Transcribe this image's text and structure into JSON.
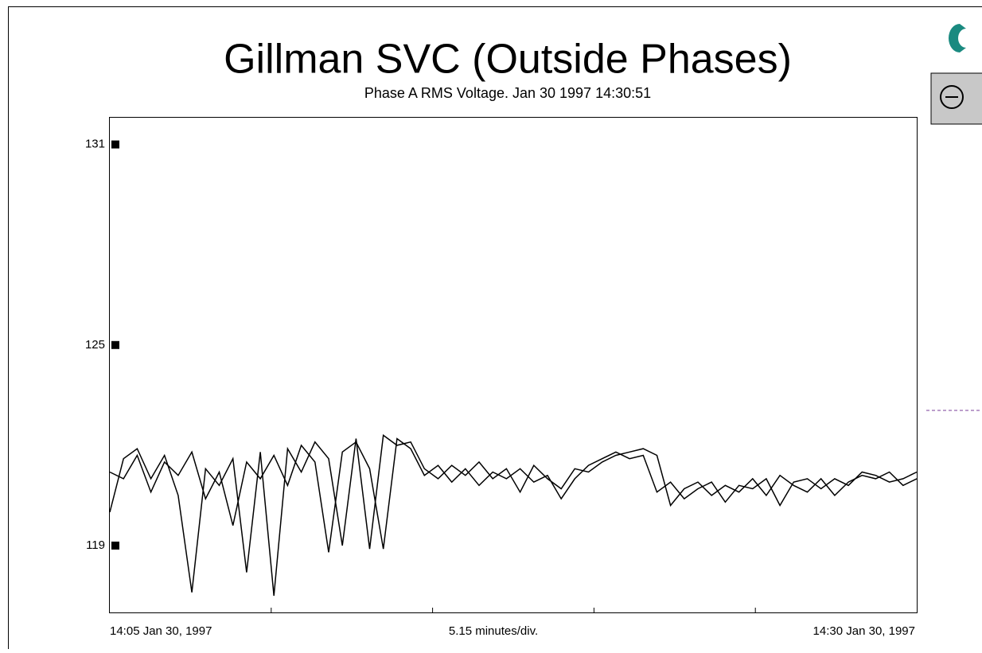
{
  "chart_data": {
    "type": "line",
    "title": "Gillman SVC (Outside Phases)",
    "subtitle": "Phase A RMS Voltage. Jan 30 1997 14:30:51",
    "x_labels": [
      "14:05 Jan 30, 1997",
      "5.15 minutes/div.",
      "14:30 Jan 30, 1997"
    ],
    "ylim": [
      117,
      131.8
    ],
    "yticks": [
      119,
      125,
      131
    ],
    "series": [
      {
        "color": "#000000",
        "values": [
          120.0,
          121.6,
          121.9,
          121.0,
          121.7,
          120.5,
          117.6,
          121.3,
          120.8,
          121.6,
          118.2,
          121.8,
          117.5,
          121.9,
          121.2,
          122.1,
          121.6,
          119.0,
          122.2,
          118.9,
          122.3,
          122.0,
          122.1,
          121.3,
          121.0,
          121.4,
          121.1,
          121.5,
          121.0,
          121.3,
          120.6,
          121.4,
          121.0,
          120.7,
          121.3,
          121.2,
          121.5,
          121.7,
          121.8,
          121.9,
          121.7,
          120.2,
          120.7,
          120.9,
          120.5,
          120.8,
          120.6,
          121.0,
          120.5,
          121.1,
          120.8,
          120.6,
          121.0,
          120.5,
          120.9,
          121.1,
          121.0,
          121.2,
          120.8,
          121.0
        ]
      },
      {
        "color": "#000000",
        "values": [
          121.2,
          121.0,
          121.7,
          120.6,
          121.5,
          121.1,
          121.8,
          120.4,
          121.2,
          119.6,
          121.5,
          121.0,
          121.7,
          120.8,
          122.0,
          121.5,
          118.8,
          121.8,
          122.1,
          121.3,
          118.9,
          122.2,
          121.9,
          121.1,
          121.4,
          120.9,
          121.3,
          120.8,
          121.2,
          121.0,
          121.3,
          120.9,
          121.1,
          120.4,
          121.0,
          121.4,
          121.6,
          121.8,
          121.6,
          121.7,
          120.6,
          120.9,
          120.4,
          120.7,
          120.9,
          120.3,
          120.8,
          120.7,
          121.0,
          120.2,
          120.9,
          121.0,
          120.7,
          121.0,
          120.8,
          121.2,
          121.1,
          120.9,
          121.0,
          121.2
        ]
      }
    ]
  }
}
